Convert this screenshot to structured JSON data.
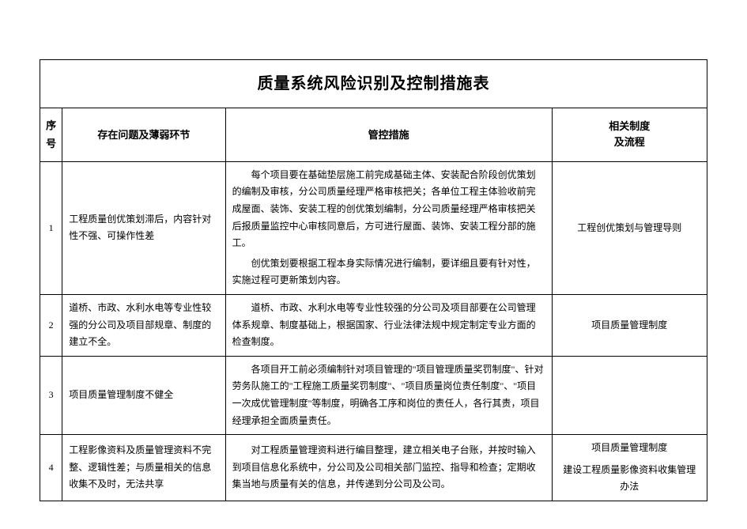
{
  "title": "质量系统风险识别及控制措施表",
  "columns": {
    "seq": "序号",
    "problem": "存在问题及薄弱环节",
    "measure": "管控措施",
    "system_line1": "相关制度",
    "system_line2": "及流程"
  },
  "rows": [
    {
      "seq": "1",
      "problem": "工程质量创优策划滞后，内容针对性不强、可操作性差",
      "measure_p1": "每个项目要在基础垫层施工前完成基础主体、安装配合阶段创优策划的编制及审核，分公司质量经理严格审核把关；各单位工程主体验收前完成屋面、装饰、安装工程的创优策划编制，分公司质量经理严格审核把关后报质量监控中心审核同意后，方可进行屋面、装饰、安装工程分部的施工。",
      "measure_p2": "创优策划要根据工程本身实际情况进行编制，要详细且要有针对性，实施过程可更新策划内容。",
      "system": "工程创优策划与管理导则"
    },
    {
      "seq": "2",
      "problem": "道桥、市政、水利水电等专业性较强的分公司及项目部规章、制度的建立不全。",
      "measure_p1": "道桥、市政、水利水电等专业性较强的分公司及项目部要在公司管理体系规章、制度基础上，根据国家、行业法律法规中规定制定专业方面的检查制度。",
      "system": "项目质量管理制度"
    },
    {
      "seq": "3",
      "problem": "项目质量管理制度不健全",
      "measure_p1": "各项目开工前必须编制针对项目管理的\"项目管理质量奖罚制度\"、针对劳务队施工的\"工程施工质量奖罚制度\"、\"项目质量岗位责任制度\"、\"项目一次成优管理制度\"等制度，明确各工序和岗位的责任人，各行其责，项目经理承担全面质量责任。",
      "system": ""
    },
    {
      "seq": "4",
      "problem": "工程影像资料及质量管理资料不完整、逻辑性差；与质量相关的信息收集不及时，无法共享",
      "measure_p1": "对工程质量管理资料进行编目整理，建立相关电子台账，并按时输入到项目信息化系统中，分公司及公司相关部门监控、指导和检查；定期收集当地与质量有关的信息，并传递到分公司及公司。",
      "system_p1": "项目质量管理制度",
      "system_p2": "建设工程质量影像资料收集管理办法"
    }
  ]
}
